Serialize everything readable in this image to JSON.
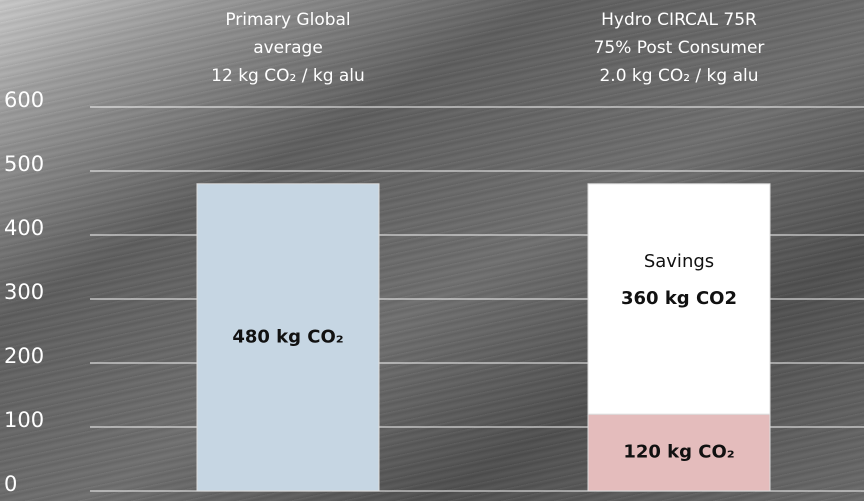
{
  "chart_data": {
    "type": "stacked_bar",
    "categories": [
      [
        "Primary Global",
        "average",
        "12 kg CO₂ / kg alu"
      ],
      [
        "Hydro  CIRCAL 75R",
        "75%  Post Consumer",
        "2.0 kg CO₂ / kg alu"
      ]
    ],
    "series": [
      {
        "colors": [
          "#c6d6e3",
          "#e4bcbc"
        ],
        "values": [
          480,
          120
        ],
        "value_labels": [
          "480 kg CO₂",
          "120 kg CO₂"
        ]
      },
      {
        "name": "Savings",
        "color": "#ffffff",
        "values": [
          null,
          360
        ],
        "value_labels": [
          null,
          "360 kg CO2"
        ]
      }
    ],
    "ylim": [
      0,
      600
    ],
    "yticks": [
      0,
      100,
      200,
      300,
      400,
      500,
      600
    ],
    "grid": true
  }
}
